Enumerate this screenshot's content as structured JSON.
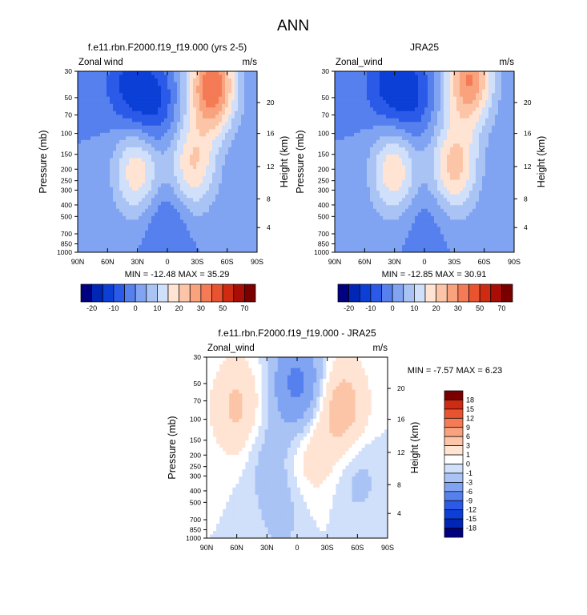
{
  "figure": {
    "title": "ANN"
  },
  "chart_data": [
    {
      "type": "heatmap",
      "title": "f.e11.rbn.F2000.f19_f19.000 (yrs 2-5)",
      "left_label": "Zonal wind",
      "right_label": "m/s",
      "xlabel": "",
      "ylabel": "Pressure (mb)",
      "y2label": "Height (km)",
      "x_ticks": [
        "90N",
        "60N",
        "30N",
        "0",
        "30S",
        "60S",
        "90S"
      ],
      "y_ticks": [
        "30",
        "50",
        "70",
        "100",
        "150",
        "200",
        "250",
        "300",
        "400",
        "500",
        "700",
        "850",
        "1000"
      ],
      "y2_ticks": [
        "20",
        "16",
        "12",
        "8",
        "4"
      ],
      "stats": "MIN = -12.48  MAX =  35.29",
      "colorbar_labels": [
        "-20",
        "-10",
        "0",
        "10",
        "20",
        "30",
        "50",
        "70"
      ],
      "colorbar_levels": [
        -20,
        -15,
        -10,
        -5,
        0,
        5,
        10,
        15,
        20,
        25,
        30,
        40,
        50,
        60,
        70
      ],
      "colorbar_colors": [
        "#000080",
        "#0026b5",
        "#0b3fd6",
        "#2b5ae8",
        "#5580ee",
        "#81a4f2",
        "#a9c3f5",
        "#d0dffa",
        "#ffe4d4",
        "#fcc5a7",
        "#f8a27e",
        "#f47b55",
        "#e9532f",
        "#cf2a12",
        "#a90d05",
        "#7a0000"
      ],
      "features": [
        {
          "lat": -25,
          "p": 190,
          "value": 20
        },
        {
          "lat": -45,
          "p": 40,
          "value": 35
        },
        {
          "lat": 30,
          "p": 200,
          "value": 20
        },
        {
          "lat": 15,
          "p": 60,
          "value": -12
        },
        {
          "lat": 40,
          "p": 40,
          "value": -10
        },
        {
          "lat": 0,
          "p": 500,
          "value": -7
        }
      ]
    },
    {
      "type": "heatmap",
      "title": "JRA25",
      "left_label": "Zonal_wind",
      "right_label": "m/s",
      "xlabel": "",
      "ylabel": "Pressure (mb)",
      "y2label": "Height (km)",
      "x_ticks": [
        "90N",
        "60N",
        "30N",
        "0",
        "30S",
        "60S",
        "90S"
      ],
      "y_ticks": [
        "30",
        "50",
        "70",
        "100",
        "150",
        "200",
        "250",
        "300",
        "400",
        "500",
        "700",
        "850",
        "1000"
      ],
      "y2_ticks": [
        "20",
        "16",
        "12",
        "8",
        "4"
      ],
      "stats": "MIN = -12.85  MAX =  30.91",
      "colorbar_labels": [
        "-20",
        "-10",
        "0",
        "10",
        "20",
        "30",
        "50",
        "70"
      ],
      "colorbar_levels": [
        -20,
        -15,
        -10,
        -5,
        0,
        5,
        10,
        15,
        20,
        25,
        30,
        40,
        50,
        60,
        70
      ],
      "colorbar_colors": [
        "#000080",
        "#0026b5",
        "#0b3fd6",
        "#2b5ae8",
        "#5580ee",
        "#81a4f2",
        "#a9c3f5",
        "#d0dffa",
        "#ffe4d4",
        "#fcc5a7",
        "#f8a27e",
        "#f47b55",
        "#e9532f",
        "#cf2a12",
        "#a90d05",
        "#7a0000"
      ],
      "features": [
        {
          "lat": -30,
          "p": 190,
          "value": 22
        },
        {
          "lat": -45,
          "p": 35,
          "value": 30
        },
        {
          "lat": 30,
          "p": 200,
          "value": 20
        },
        {
          "lat": 15,
          "p": 50,
          "value": -12
        },
        {
          "lat": 40,
          "p": 40,
          "value": -9
        },
        {
          "lat": 0,
          "p": 500,
          "value": -4
        }
      ]
    },
    {
      "type": "heatmap",
      "title": "f.e11.rbn.F2000.f19_f19.000 - JRA25",
      "left_label": "Zonal_wind",
      "right_label": "m/s",
      "xlabel": "",
      "ylabel": "Pressure (mb)",
      "y2label": "Height (km)",
      "x_ticks": [
        "90N",
        "60N",
        "30N",
        "0",
        "30S",
        "60S",
        "90S"
      ],
      "y_ticks": [
        "30",
        "50",
        "70",
        "100",
        "150",
        "200",
        "250",
        "300",
        "400",
        "500",
        "700",
        "850",
        "1000"
      ],
      "y2_ticks": [
        "20",
        "16",
        "12",
        "8",
        "4"
      ],
      "stats": "MIN = -7.57  MAX =  6.23",
      "colorbar_labels": [
        "18",
        "15",
        "12",
        "9",
        "6",
        "3",
        "1",
        "0",
        "-1",
        "-3",
        "-6",
        "-9",
        "-12",
        "-15",
        "-18"
      ],
      "colorbar_levels": [
        -18,
        -15,
        -12,
        -9,
        -6,
        -3,
        -1,
        0,
        1,
        3,
        6,
        9,
        12,
        15,
        18
      ],
      "colorbar_colors": [
        "#000080",
        "#0026b5",
        "#0b3fd6",
        "#2b5ae8",
        "#5580ee",
        "#81a4f2",
        "#a9c3f5",
        "#d0dffa",
        "#ffffff",
        "#ffe4d4",
        "#fcc5a7",
        "#f8a27e",
        "#f47b55",
        "#e9532f",
        "#cf2a12",
        "#7a0000"
      ],
      "features": [
        {
          "lat": 60,
          "p": 80,
          "value": 3.5
        },
        {
          "lat": -45,
          "p": 80,
          "value": 4.5
        },
        {
          "lat": -15,
          "p": 200,
          "value": 2
        },
        {
          "lat": 0,
          "p": 50,
          "value": -7
        },
        {
          "lat": 30,
          "p": 200,
          "value": -1.5
        },
        {
          "lat": 15,
          "p": 600,
          "value": -1.5
        },
        {
          "lat": -60,
          "p": 300,
          "value": -1.5
        }
      ]
    }
  ]
}
